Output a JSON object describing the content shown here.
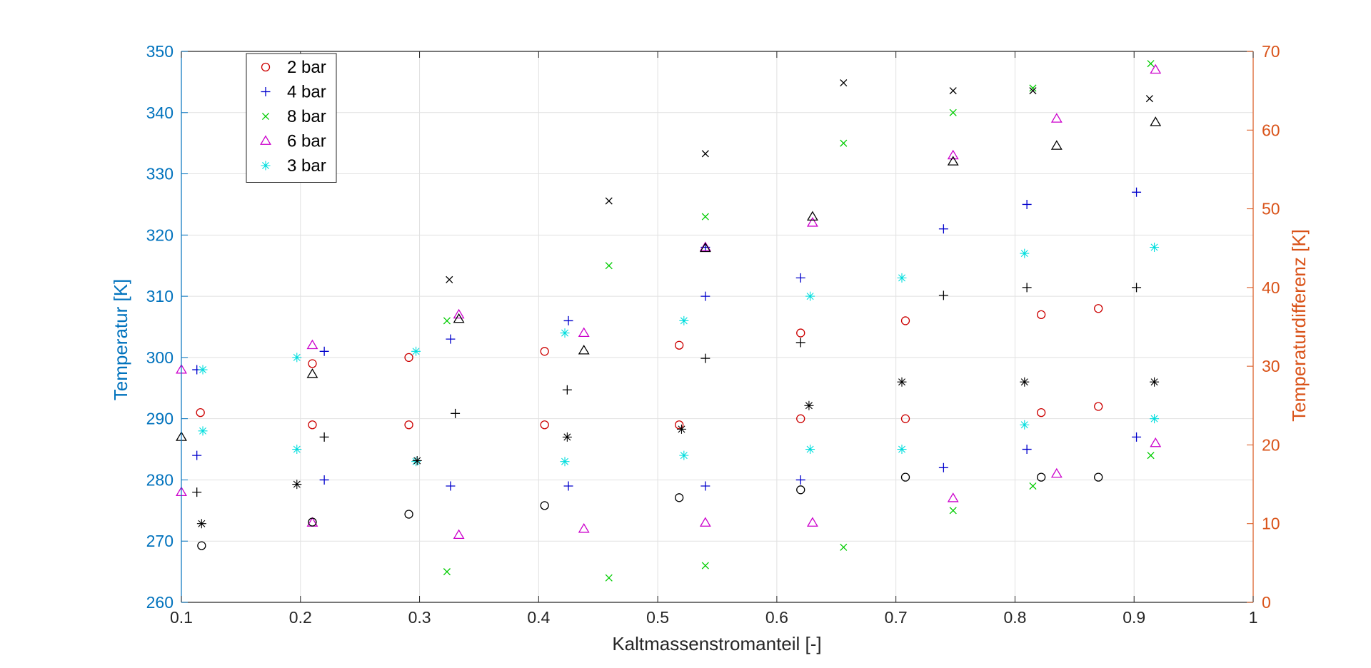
{
  "chart_data": {
    "type": "scatter",
    "xlabel": "Kaltmassenstromanteil [-]",
    "ylabel_left": "Temperatur [K]",
    "ylabel_right": "Temperaturdifferenz [K]",
    "xlim": [
      0.1,
      1
    ],
    "ylim_left": [
      260,
      350
    ],
    "ylim_right": [
      0,
      70
    ],
    "x_ticks": [
      "0.1",
      "0.2",
      "0.3",
      "0.4",
      "0.5",
      "0.6",
      "0.7",
      "0.8",
      "0.9",
      "1"
    ],
    "y_left_ticks": [
      "260",
      "270",
      "280",
      "290",
      "300",
      "310",
      "320",
      "330",
      "340",
      "350"
    ],
    "y_right_ticks": [
      "0",
      "10",
      "20",
      "30",
      "40",
      "50",
      "60",
      "70"
    ],
    "grid": true,
    "legend_position": "top-left",
    "colors": {
      "left_axis": "#0072BD",
      "right_axis": "#D95319",
      "axis_text": "#262626",
      "grid": "#e1e1e1"
    },
    "series": [
      {
        "name": "2 bar",
        "marker": "circle",
        "color": "#cc0000",
        "axis": "left",
        "points": [
          [
            0.116,
            291
          ],
          [
            0.21,
            289
          ],
          [
            0.21,
            299
          ],
          [
            0.291,
            289
          ],
          [
            0.291,
            300
          ],
          [
            0.405,
            289
          ],
          [
            0.405,
            301
          ],
          [
            0.518,
            289
          ],
          [
            0.518,
            302
          ],
          [
            0.62,
            290
          ],
          [
            0.62,
            304
          ],
          [
            0.708,
            290
          ],
          [
            0.708,
            306
          ],
          [
            0.822,
            291
          ],
          [
            0.822,
            307
          ],
          [
            0.87,
            292
          ],
          [
            0.87,
            308
          ]
        ]
      },
      {
        "name": "4 bar",
        "marker": "plus",
        "color": "#0000cc",
        "axis": "left",
        "points": [
          [
            0.113,
            284
          ],
          [
            0.113,
            298
          ],
          [
            0.22,
            280
          ],
          [
            0.22,
            301
          ],
          [
            0.326,
            279
          ],
          [
            0.326,
            303
          ],
          [
            0.425,
            279
          ],
          [
            0.425,
            306
          ],
          [
            0.54,
            279
          ],
          [
            0.54,
            310
          ],
          [
            0.54,
            318
          ],
          [
            0.62,
            280
          ],
          [
            0.62,
            313
          ],
          [
            0.74,
            282
          ],
          [
            0.74,
            321
          ],
          [
            0.81,
            285
          ],
          [
            0.81,
            325
          ],
          [
            0.902,
            287
          ],
          [
            0.902,
            327
          ]
        ]
      },
      {
        "name": "8 bar",
        "marker": "x",
        "color": "#00cc00",
        "axis": "left",
        "points": [
          [
            0.323,
            265
          ],
          [
            0.323,
            306
          ],
          [
            0.459,
            264
          ],
          [
            0.459,
            315
          ],
          [
            0.54,
            266
          ],
          [
            0.54,
            323
          ],
          [
            0.656,
            269
          ],
          [
            0.656,
            335
          ],
          [
            0.748,
            275
          ],
          [
            0.748,
            340
          ],
          [
            0.815,
            279
          ],
          [
            0.815,
            344
          ],
          [
            0.914,
            284
          ],
          [
            0.914,
            348
          ]
        ]
      },
      {
        "name": "6 bar",
        "marker": "triangle",
        "color": "#cc00cc",
        "axis": "left",
        "points": [
          [
            0.1,
            278
          ],
          [
            0.1,
            298
          ],
          [
            0.21,
            273
          ],
          [
            0.21,
            302
          ],
          [
            0.333,
            271
          ],
          [
            0.333,
            307
          ],
          [
            0.438,
            272
          ],
          [
            0.438,
            304
          ],
          [
            0.54,
            273
          ],
          [
            0.54,
            318
          ],
          [
            0.63,
            273
          ],
          [
            0.63,
            322
          ],
          [
            0.748,
            277
          ],
          [
            0.748,
            333
          ],
          [
            0.835,
            281
          ],
          [
            0.835,
            339
          ],
          [
            0.918,
            286
          ],
          [
            0.918,
            347
          ]
        ]
      },
      {
        "name": "3 bar",
        "marker": "asterisk",
        "color": "#00dddd",
        "axis": "left",
        "points": [
          [
            0.118,
            288
          ],
          [
            0.118,
            298
          ],
          [
            0.197,
            285
          ],
          [
            0.197,
            300
          ],
          [
            0.297,
            283
          ],
          [
            0.297,
            301
          ],
          [
            0.422,
            283
          ],
          [
            0.422,
            304
          ],
          [
            0.522,
            284
          ],
          [
            0.522,
            306
          ],
          [
            0.628,
            285
          ],
          [
            0.628,
            310
          ],
          [
            0.705,
            285
          ],
          [
            0.705,
            313
          ],
          [
            0.808,
            289
          ],
          [
            0.808,
            317
          ],
          [
            0.917,
            290
          ],
          [
            0.917,
            318
          ]
        ]
      },
      {
        "marker": "circle",
        "color": "#000000",
        "axis": "right",
        "points": [
          [
            0.117,
            7.2
          ],
          [
            0.21,
            10.2
          ],
          [
            0.291,
            11.2
          ],
          [
            0.405,
            12.3
          ],
          [
            0.518,
            13.3
          ],
          [
            0.62,
            14.3
          ],
          [
            0.708,
            15.9
          ],
          [
            0.822,
            15.9
          ],
          [
            0.87,
            15.9
          ]
        ]
      },
      {
        "marker": "plus",
        "color": "#000000",
        "axis": "right",
        "points": [
          [
            0.113,
            14
          ],
          [
            0.22,
            21
          ],
          [
            0.33,
            24
          ],
          [
            0.424,
            27
          ],
          [
            0.54,
            31
          ],
          [
            0.62,
            33
          ],
          [
            0.74,
            39
          ],
          [
            0.81,
            40
          ],
          [
            0.902,
            40
          ]
        ]
      },
      {
        "marker": "x",
        "color": "#000000",
        "axis": "right",
        "points": [
          [
            0.325,
            41
          ],
          [
            0.459,
            51
          ],
          [
            0.54,
            57
          ],
          [
            0.656,
            66
          ],
          [
            0.748,
            65
          ],
          [
            0.815,
            65
          ],
          [
            0.913,
            64
          ]
        ]
      },
      {
        "marker": "triangle",
        "color": "#000000",
        "axis": "right",
        "points": [
          [
            0.1,
            21
          ],
          [
            0.21,
            29
          ],
          [
            0.333,
            36
          ],
          [
            0.438,
            32
          ],
          [
            0.54,
            45
          ],
          [
            0.63,
            49
          ],
          [
            0.748,
            56
          ],
          [
            0.835,
            58
          ],
          [
            0.918,
            61
          ]
        ]
      },
      {
        "marker": "asterisk",
        "color": "#000000",
        "axis": "right",
        "points": [
          [
            0.117,
            10
          ],
          [
            0.197,
            15
          ],
          [
            0.298,
            18
          ],
          [
            0.424,
            21
          ],
          [
            0.52,
            22
          ],
          [
            0.627,
            25
          ],
          [
            0.705,
            28
          ],
          [
            0.808,
            28
          ],
          [
            0.917,
            28
          ]
        ]
      }
    ]
  }
}
